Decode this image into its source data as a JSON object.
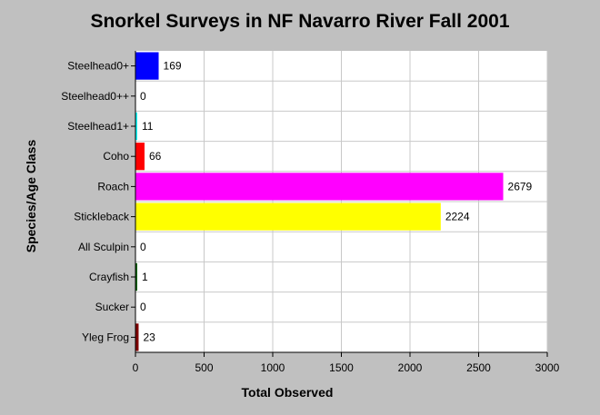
{
  "chart_data": {
    "type": "bar",
    "orientation": "horizontal",
    "title": "Snorkel Surveys in NF Navarro River Fall 2001",
    "xlabel": "Total Observed",
    "ylabel": "Species/Age Class",
    "categories": [
      "Steelhead0+",
      "Steelhead0++",
      "Steelhead1+",
      "Coho",
      "Roach",
      "Stickleback",
      "All Sculpin",
      "Crayfish",
      "Sucker",
      "Yleg Frog"
    ],
    "values": [
      169,
      0,
      11,
      66,
      2679,
      2224,
      0,
      1,
      0,
      23
    ],
    "value_labels": [
      "169",
      "0",
      "11",
      "66",
      "2679",
      "2224",
      "0",
      "1",
      "0",
      "23"
    ],
    "colors": [
      "#0000ff",
      "#ff00ff",
      "#00ffff",
      "#ff0000",
      "#ff00ff",
      "#ffff00",
      "#ffa500",
      "#006400",
      "#808080",
      "#800000"
    ],
    "xlim": [
      0,
      3000
    ],
    "xticks": [
      0,
      500,
      1000,
      1500,
      2000,
      2500,
      3000
    ],
    "xtick_labels": [
      "0",
      "500",
      "1000",
      "1500",
      "2000",
      "2500",
      "3000"
    ],
    "grid": "vertical",
    "legend": "none",
    "background": "#c0c0c0",
    "plot_background": "#ffffff"
  }
}
